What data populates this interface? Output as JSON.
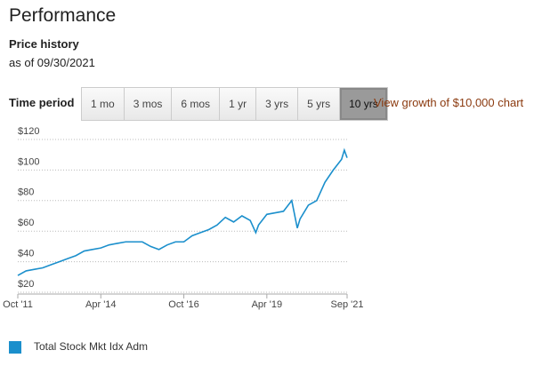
{
  "header": {
    "title": "Performance",
    "subtitle": "Price history",
    "as_of": "as of 09/30/2021"
  },
  "time_period": {
    "label": "Time period",
    "options": [
      "1 mo",
      "3 mos",
      "6 mos",
      "1 yr",
      "3 yrs",
      "5 yrs",
      "10 yrs"
    ],
    "selected": 6
  },
  "link": "View growth of $10,000 chart",
  "chart_data": {
    "type": "line",
    "x": [
      "2011-10",
      "2012-01",
      "2012-04",
      "2012-07",
      "2012-10",
      "2013-01",
      "2013-04",
      "2013-07",
      "2013-10",
      "2014-01",
      "2014-04",
      "2014-07",
      "2014-10",
      "2015-01",
      "2015-04",
      "2015-07",
      "2015-10",
      "2016-01",
      "2016-04",
      "2016-07",
      "2016-10",
      "2017-01",
      "2017-04",
      "2017-07",
      "2017-10",
      "2018-01",
      "2018-04",
      "2018-07",
      "2018-10",
      "2018-12",
      "2019-01",
      "2019-04",
      "2019-07",
      "2019-10",
      "2020-01",
      "2020-03",
      "2020-04",
      "2020-07",
      "2020-10",
      "2021-01",
      "2021-04",
      "2021-07",
      "2021-08",
      "2021-09"
    ],
    "series": [
      {
        "name": "Total Stock Mkt Idx Adm",
        "color": "#1b8fcc",
        "values": [
          31,
          34,
          35,
          36,
          38,
          40,
          42,
          44,
          47,
          48,
          49,
          51,
          52,
          53,
          53,
          53,
          50,
          48,
          51,
          53,
          53,
          57,
          59,
          61,
          64,
          69,
          66,
          70,
          67,
          59,
          64,
          71,
          72,
          73,
          80,
          62,
          68,
          77,
          80,
          92,
          100,
          107,
          113,
          108
        ]
      }
    ],
    "xlim": [
      "2011-10",
      "2021-09"
    ],
    "xticks": [
      {
        "value": "2011-10",
        "label": "Oct '11"
      },
      {
        "value": "2014-04",
        "label": "Apr '14"
      },
      {
        "value": "2016-10",
        "label": "Oct '16"
      },
      {
        "value": "2019-04",
        "label": "Apr '19"
      },
      {
        "value": "2021-09",
        "label": "Sep '21"
      }
    ],
    "ylim": [
      20,
      120
    ],
    "yticks": [
      {
        "value": 20,
        "label": "$20"
      },
      {
        "value": 40,
        "label": "$40"
      },
      {
        "value": 60,
        "label": "$60"
      },
      {
        "value": 80,
        "label": "$80"
      },
      {
        "value": 100,
        "label": "$100"
      },
      {
        "value": 120,
        "label": "$120"
      }
    ],
    "grid": true
  }
}
